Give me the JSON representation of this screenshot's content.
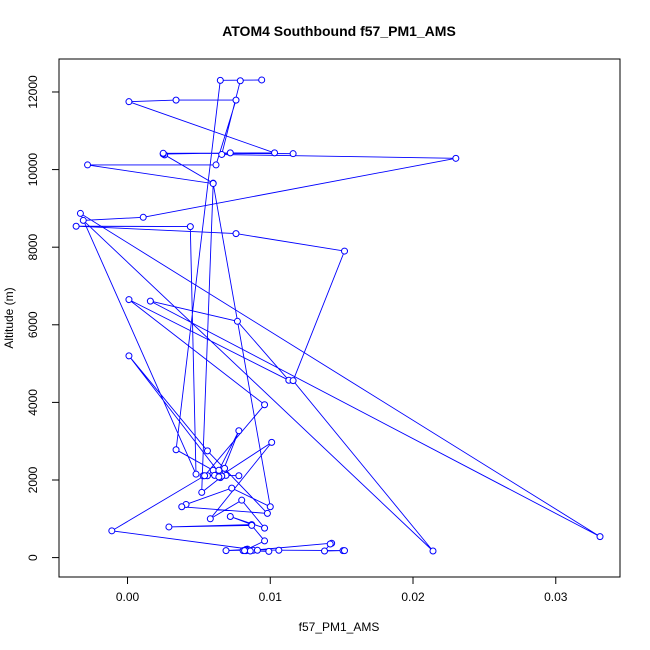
{
  "chart_data": {
    "type": "line",
    "title": "ATOM4 Southbound f57_PM1_AMS",
    "xlabel": "f57_PM1_AMS",
    "ylabel": "Altitude (m)",
    "xlim": [
      -0.0048,
      0.0345
    ],
    "ylim": [
      -500,
      12850
    ],
    "x_ticks": [
      0.0,
      0.01,
      0.02,
      0.03
    ],
    "x_tick_labels": [
      "0.00",
      "0.01",
      "0.02",
      "0.03"
    ],
    "y_ticks": [
      0,
      2000,
      4000,
      6000,
      8000,
      10000,
      12000
    ],
    "y_tick_labels": [
      "0",
      "2000",
      "4000",
      "6000",
      "8000",
      "10000",
      "12000"
    ],
    "grid": false,
    "series": [
      {
        "color": "#0000ff",
        "marker": "open-circle",
        "points": [
          [
            0.0094,
            12310
          ],
          [
            0.0065,
            12300
          ],
          [
            0.0034,
            2780
          ],
          [
            0.006,
            2250
          ],
          [
            0.0056,
            2110
          ],
          [
            0.0053,
            2110
          ],
          [
            0.0069,
            2120
          ],
          [
            0.0078,
            2110
          ],
          [
            0.0061,
            2120
          ],
          [
            0.0068,
            2300
          ],
          [
            0.0064,
            2250
          ],
          [
            0.0078,
            3270
          ],
          [
            0.0065,
            2060
          ],
          [
            0.0052,
            1680
          ],
          [
            0.006,
            9650
          ],
          [
            0.0026,
            10380
          ],
          [
            0.0025,
            10400
          ],
          [
            0.0072,
            10430
          ],
          [
            0.0116,
            10410
          ],
          [
            0.0025,
            10420
          ],
          [
            0.0103,
            10430
          ],
          [
            0.0001,
            11750
          ],
          [
            0.0034,
            11790
          ],
          [
            0.0076,
            11790
          ],
          [
            0.0062,
            10120
          ],
          [
            -0.0028,
            10120
          ],
          [
            0.006,
            9640
          ],
          [
            0.01,
            1310
          ],
          [
            0.0073,
            1790
          ],
          [
            0.0041,
            1370
          ],
          [
            0.0038,
            1310
          ],
          [
            0.0098,
            1140
          ],
          [
            0.0056,
            2750
          ],
          [
            0.0001,
            5200
          ],
          [
            0.0066,
            2100
          ],
          [
            0.0064,
            2080
          ],
          [
            0.0101,
            2970
          ],
          [
            0.0058,
            1000
          ],
          [
            0.008,
            1480
          ],
          [
            0.0096,
            760
          ],
          [
            0.0072,
            1060
          ],
          [
            0.0087,
            850
          ],
          [
            0.0029,
            790
          ],
          [
            0.0087,
            830
          ],
          [
            0.0096,
            430
          ],
          [
            0.0084,
            220
          ],
          [
            0.0083,
            180
          ],
          [
            0.0099,
            160
          ],
          [
            0.0083,
            180
          ],
          [
            0.0081,
            180
          ],
          [
            0.0088,
            190
          ],
          [
            0.0143,
            370
          ],
          [
            0.0142,
            350
          ],
          [
            0.0138,
            170
          ],
          [
            0.0151,
            180
          ],
          [
            0.0152,
            180
          ],
          [
            0.0106,
            190
          ],
          [
            0.0083,
            210
          ],
          [
            0.0069,
            180
          ],
          [
            0.0083,
            190
          ],
          [
            0.0086,
            170
          ],
          [
            0.0082,
            180
          ],
          [
            0.0091,
            190
          ],
          [
            -0.0011,
            690
          ],
          [
            0.0054,
            2110
          ],
          [
            0.0096,
            3940
          ],
          [
            0.0001,
            6650
          ],
          [
            0.0113,
            4570
          ],
          [
            0.0077,
            6090
          ],
          [
            0.0016,
            6610
          ],
          [
            0.0331,
            540
          ],
          [
            -0.0033,
            8870
          ],
          [
            0.0048,
            2150
          ],
          [
            0.0044,
            8530
          ],
          [
            -0.0036,
            8540
          ],
          [
            0.0076,
            8350
          ],
          [
            0.0152,
            7900
          ],
          [
            0.0116,
            4560
          ],
          [
            0.0214,
            170
          ],
          [
            -0.0031,
            8690
          ],
          [
            0.0011,
            8770
          ],
          [
            0.023,
            10290
          ],
          [
            0.0066,
            10390
          ],
          [
            0.0079,
            12290
          ]
        ]
      }
    ]
  }
}
